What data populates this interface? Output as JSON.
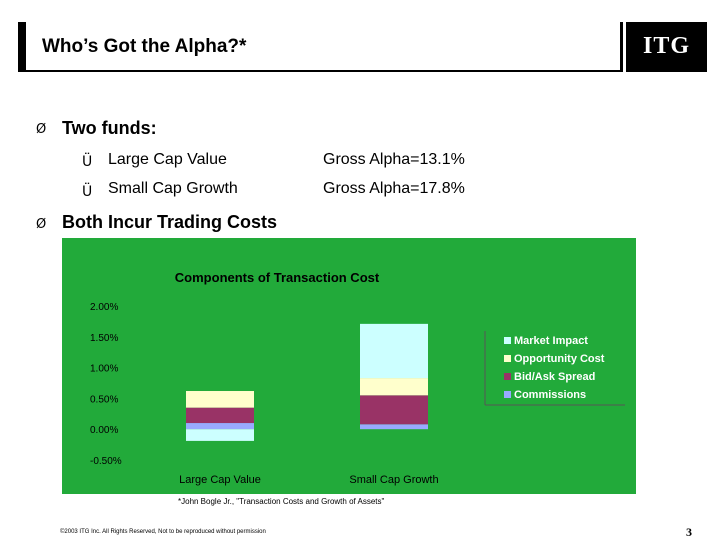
{
  "header": {
    "title": "Who’s Got the Alpha?*",
    "logo": "ITG"
  },
  "bullets": [
    {
      "marker": "Ø",
      "text": "Two funds:"
    },
    {
      "marker": "Ø",
      "text": "Both Incur Trading Costs"
    }
  ],
  "funds": [
    {
      "marker": "Ü",
      "name": "Large Cap Value",
      "alpha": "Gross Alpha=13.1%"
    },
    {
      "marker": "Ü",
      "name": "Small Cap Growth",
      "alpha": "Gross Alpha=17.8%"
    }
  ],
  "chart_data": {
    "type": "bar",
    "stacked": true,
    "title": "Components of Transaction Cost",
    "categories": [
      "Large Cap Value",
      "Small Cap Growth"
    ],
    "ylim": [
      -0.5,
      2.0
    ],
    "yticks": [
      "2.00%",
      "1.50%",
      "1.00%",
      "0.50%",
      "0.00%",
      "-0.50%"
    ],
    "ytick_values": [
      2.0,
      1.5,
      1.0,
      0.5,
      0.0,
      -0.5
    ],
    "series": [
      {
        "name": "Commissions",
        "color": "#99aaff",
        "values": [
          0.1,
          0.08
        ]
      },
      {
        "name": "Bid/Ask Spread",
        "color": "#993366",
        "values": [
          0.25,
          0.47
        ]
      },
      {
        "name": "Opportunity Cost",
        "color": "#ffffcc",
        "values": [
          0.27,
          0.28
        ]
      },
      {
        "name": "Market Impact",
        "color": "#ccffff",
        "values": [
          -0.19,
          0.88
        ]
      }
    ],
    "legend_order": [
      "Market Impact",
      "Opportunity Cost",
      "Bid/Ask Spread",
      "Commissions"
    ],
    "legend_position": "right",
    "background": "#22aa3a",
    "grid": false
  },
  "footnote": "*John Bogle Jr., \"Transaction Costs and Growth of Assets\"",
  "copyright": "©2003 ITG Inc. All Rights Reserved, Not to be reproduced without permission",
  "page_number": "3"
}
